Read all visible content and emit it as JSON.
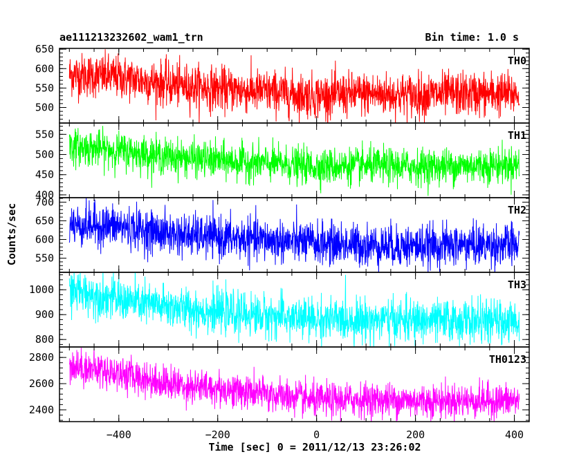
{
  "chart_data": {
    "type": "line",
    "title": "ae111213232602_wam1_trn",
    "bin_time": "Bin time: 1.0 s",
    "ylabel": "Counts/sec",
    "xlabel": "Time [sec] 0 = 2011/12/13 23:26:02",
    "xlim": [
      -520,
      430
    ],
    "x_ticks": [
      -400,
      -200,
      0,
      200,
      400
    ],
    "x_tick_labels": [
      "−400",
      "−200",
      "0",
      "200",
      "400"
    ],
    "data_x_range": [
      -500,
      410
    ],
    "panels": [
      {
        "name": "TH0",
        "color": "#ff0000",
        "ylim": [
          460,
          652
        ],
        "y_ticks": [
          500,
          550,
          600,
          650
        ],
        "trend_x": [
          -500,
          -400,
          -300,
          -200,
          -100,
          0,
          100,
          200,
          300,
          410
        ],
        "trend_y": [
          585,
          578,
          560,
          548,
          540,
          530,
          535,
          532,
          535,
          535
        ],
        "noise": 28
      },
      {
        "name": "TH1",
        "color": "#00ff00",
        "ylim": [
          393,
          578
        ],
        "y_ticks": [
          400,
          450,
          500,
          550
        ],
        "trend_x": [
          -500,
          -400,
          -300,
          -200,
          -100,
          0,
          100,
          200,
          300,
          410
        ],
        "trend_y": [
          520,
          510,
          495,
          485,
          478,
          470,
          472,
          470,
          472,
          475
        ],
        "noise": 22
      },
      {
        "name": "TH2",
        "color": "#0000ff",
        "ylim": [
          512,
          712
        ],
        "y_ticks": [
          550,
          600,
          650,
          700
        ],
        "trend_x": [
          -500,
          -400,
          -300,
          -200,
          -100,
          0,
          100,
          200,
          300,
          410
        ],
        "trend_y": [
          640,
          635,
          615,
          605,
          598,
          590,
          585,
          582,
          585,
          585
        ],
        "noise": 28
      },
      {
        "name": "TH3",
        "color": "#00ffff",
        "ylim": [
          770,
          1070
        ],
        "y_ticks": [
          800,
          900,
          1000
        ],
        "trend_x": [
          -500,
          -400,
          -300,
          -200,
          -100,
          0,
          100,
          200,
          300,
          410
        ],
        "trend_y": [
          1000,
          960,
          930,
          910,
          895,
          880,
          880,
          875,
          875,
          870
        ],
        "noise": 42
      },
      {
        "name": "TH0123",
        "color": "#ff00ff",
        "ylim": [
          2310,
          2880
        ],
        "y_ticks": [
          2400,
          2600,
          2800
        ],
        "trend_x": [
          -500,
          -400,
          -300,
          -200,
          -100,
          0,
          100,
          200,
          300,
          410
        ],
        "trend_y": [
          2740,
          2680,
          2600,
          2560,
          2520,
          2470,
          2480,
          2470,
          2470,
          2470
        ],
        "noise": 65
      }
    ]
  }
}
